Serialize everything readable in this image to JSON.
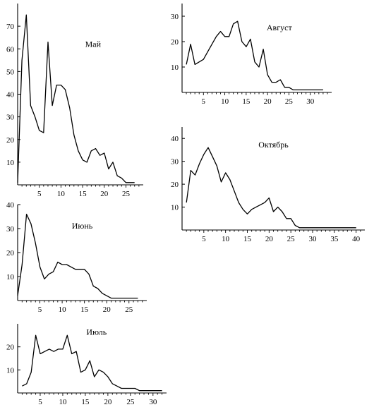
{
  "chart_data": [
    {
      "type": "line",
      "title": "Май",
      "xlabel": "",
      "ylabel": "",
      "xlim": [
        0,
        29
      ],
      "ylim": [
        0,
        80
      ],
      "xticks": [
        5,
        10,
        15,
        20,
        25
      ],
      "yticks": [
        10,
        20,
        30,
        40,
        50,
        60,
        70
      ],
      "grid": false,
      "color": "#000000",
      "x": [
        0,
        1,
        2,
        3,
        4,
        5,
        6,
        7,
        8,
        9,
        10,
        11,
        12,
        13,
        14,
        15,
        16,
        17,
        18,
        19,
        20,
        21,
        22,
        23,
        24,
        25,
        26,
        27
      ],
      "y": [
        1,
        55,
        75,
        35,
        30,
        24,
        23,
        63,
        35,
        44,
        44,
        42,
        34,
        22,
        15,
        11,
        10,
        15,
        16,
        13,
        14,
        7,
        10,
        4,
        3,
        1,
        1,
        1
      ]
    },
    {
      "type": "line",
      "title": "Август",
      "xlabel": "",
      "ylabel": "",
      "xlim": [
        0,
        35
      ],
      "ylim": [
        0,
        35
      ],
      "xticks": [
        5,
        10,
        15,
        20,
        25,
        30
      ],
      "yticks": [
        10,
        20,
        30
      ],
      "grid": false,
      "color": "#000000",
      "x": [
        1,
        2,
        3,
        4,
        5,
        6,
        7,
        8,
        9,
        10,
        11,
        12,
        13,
        14,
        15,
        16,
        17,
        18,
        19,
        20,
        21,
        22,
        23,
        24,
        25,
        26,
        27,
        28,
        29,
        30,
        31,
        32,
        33
      ],
      "y": [
        11,
        19,
        11,
        12,
        13,
        16,
        19,
        22,
        24,
        22,
        22,
        27,
        28,
        20,
        18,
        21,
        12,
        10,
        17,
        7,
        4,
        4,
        5,
        2,
        2,
        1,
        1,
        1,
        1,
        1,
        1,
        1,
        1
      ]
    },
    {
      "type": "line",
      "title": "Октябрь",
      "xlabel": "",
      "ylabel": "",
      "xlim": [
        0,
        42
      ],
      "ylim": [
        0,
        45
      ],
      "xticks": [
        5,
        10,
        15,
        20,
        25,
        30,
        35,
        40
      ],
      "yticks": [
        10,
        20,
        30,
        40
      ],
      "grid": false,
      "color": "#000000",
      "x": [
        1,
        2,
        3,
        4,
        5,
        6,
        7,
        8,
        9,
        10,
        11,
        12,
        13,
        14,
        15,
        16,
        17,
        18,
        19,
        20,
        21,
        22,
        23,
        24,
        25,
        26,
        27,
        28,
        29,
        30,
        31,
        32,
        33,
        34,
        35,
        36,
        37,
        38,
        39,
        40
      ],
      "y": [
        12,
        26,
        24,
        29,
        33,
        36,
        32,
        28,
        21,
        25,
        22,
        17,
        12,
        9,
        7,
        9,
        10,
        11,
        12,
        14,
        8,
        10,
        8,
        5,
        5,
        2,
        1,
        1,
        1,
        1,
        1,
        1,
        1,
        1,
        1,
        1,
        1,
        1,
        1,
        1
      ]
    },
    {
      "type": "line",
      "title": "Июнь",
      "xlabel": "",
      "ylabel": "",
      "xlim": [
        0,
        29
      ],
      "ylim": [
        0,
        40
      ],
      "xticks": [
        5,
        10,
        15,
        20,
        25
      ],
      "yticks": [
        10,
        20,
        30,
        40
      ],
      "grid": false,
      "color": "#000000",
      "x": [
        0,
        1,
        2,
        3,
        4,
        5,
        6,
        7,
        8,
        9,
        10,
        11,
        12,
        13,
        14,
        15,
        16,
        17,
        18,
        19,
        20,
        21,
        22,
        23,
        24,
        25,
        26,
        27
      ],
      "y": [
        2,
        15,
        36,
        32,
        24,
        14,
        9,
        11,
        12,
        16,
        15,
        15,
        14,
        13,
        13,
        13,
        11,
        6,
        5,
        3,
        2,
        1,
        1,
        1,
        1,
        1,
        1,
        1
      ]
    },
    {
      "type": "line",
      "title": "Июль",
      "xlabel": "",
      "ylabel": "",
      "xlim": [
        0,
        33
      ],
      "ylim": [
        0,
        30
      ],
      "xticks": [
        5,
        10,
        15,
        20,
        25,
        30
      ],
      "yticks": [
        10,
        20
      ],
      "grid": false,
      "color": "#000000",
      "x": [
        1,
        2,
        3,
        4,
        5,
        6,
        7,
        8,
        9,
        10,
        11,
        12,
        13,
        14,
        15,
        16,
        17,
        18,
        19,
        20,
        21,
        22,
        23,
        24,
        25,
        26,
        27,
        28,
        29,
        30,
        31,
        32
      ],
      "y": [
        3,
        4,
        9,
        25,
        17,
        18,
        19,
        18,
        19,
        19,
        25,
        17,
        18,
        9,
        10,
        14,
        7,
        10,
        9,
        7,
        4,
        3,
        2,
        2,
        2,
        2,
        1,
        1,
        1,
        1,
        1,
        1
      ]
    }
  ]
}
